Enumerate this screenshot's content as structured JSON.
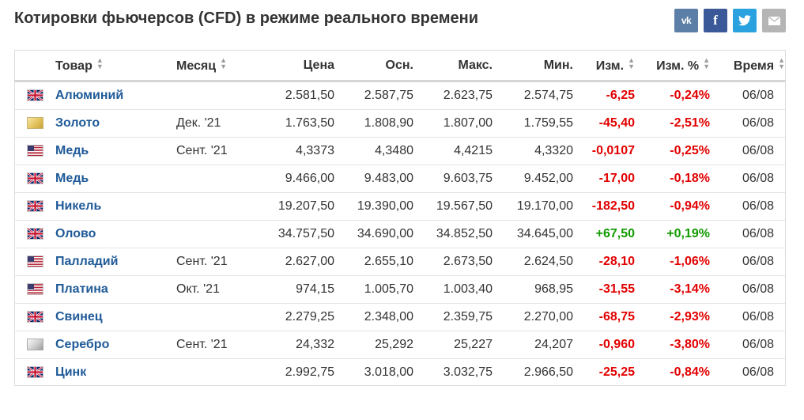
{
  "page": {
    "title": "Котировки фьючерсов (CFD) в режиме реального времени"
  },
  "social": {
    "vk": "vk",
    "facebook": "f",
    "twitter": "🐦",
    "email": "✉"
  },
  "colors": {
    "link": "#1f5a98",
    "negative": "#e20000",
    "positive": "#129a00"
  },
  "table": {
    "headers": {
      "product": "Товар",
      "month": "Месяц",
      "price": "Цена",
      "open": "Осн.",
      "high": "Макс.",
      "low": "Мин.",
      "change": "Изм.",
      "change_pct": "Изм. %",
      "time": "Время"
    },
    "rows": [
      {
        "flag": "uk-flag-icon",
        "name": "Алюминий",
        "month": "",
        "price": "2.581,50",
        "open": "2.587,75",
        "high": "2.623,75",
        "low": "2.574,75",
        "change": "-6,25",
        "change_pct": "-0,24%",
        "time": "06/08",
        "direction": "neg"
      },
      {
        "flag": "gold-icon",
        "name": "Золото",
        "month": "Дек. '21",
        "price": "1.763,50",
        "open": "1.808,90",
        "high": "1.807,00",
        "low": "1.759,55",
        "change": "-45,40",
        "change_pct": "-2,51%",
        "time": "06/08",
        "direction": "neg"
      },
      {
        "flag": "us-flag-icon",
        "name": "Медь",
        "month": "Сент. '21",
        "price": "4,3373",
        "open": "4,3480",
        "high": "4,4215",
        "low": "4,3320",
        "change": "-0,0107",
        "change_pct": "-0,25%",
        "time": "06/08",
        "direction": "neg"
      },
      {
        "flag": "uk-flag-icon",
        "name": "Медь",
        "month": "",
        "price": "9.466,00",
        "open": "9.483,00",
        "high": "9.603,75",
        "low": "9.452,00",
        "change": "-17,00",
        "change_pct": "-0,18%",
        "time": "06/08",
        "direction": "neg"
      },
      {
        "flag": "uk-flag-icon",
        "name": "Никель",
        "month": "",
        "price": "19.207,50",
        "open": "19.390,00",
        "high": "19.567,50",
        "low": "19.170,00",
        "change": "-182,50",
        "change_pct": "-0,94%",
        "time": "06/08",
        "direction": "neg"
      },
      {
        "flag": "uk-flag-icon",
        "name": "Олово",
        "month": "",
        "price": "34.757,50",
        "open": "34.690,00",
        "high": "34.852,50",
        "low": "34.645,00",
        "change": "+67,50",
        "change_pct": "+0,19%",
        "time": "06/08",
        "direction": "pos"
      },
      {
        "flag": "us-flag-icon",
        "name": "Палладий",
        "month": "Сент. '21",
        "price": "2.627,00",
        "open": "2.655,10",
        "high": "2.673,50",
        "low": "2.624,50",
        "change": "-28,10",
        "change_pct": "-1,06%",
        "time": "06/08",
        "direction": "neg"
      },
      {
        "flag": "us-flag-icon",
        "name": "Платина",
        "month": "Окт. '21",
        "price": "974,15",
        "open": "1.005,70",
        "high": "1.003,40",
        "low": "968,95",
        "change": "-31,55",
        "change_pct": "-3,14%",
        "time": "06/08",
        "direction": "neg"
      },
      {
        "flag": "uk-flag-icon",
        "name": "Свинец",
        "month": "",
        "price": "2.279,25",
        "open": "2.348,00",
        "high": "2.359,75",
        "low": "2.270,00",
        "change": "-68,75",
        "change_pct": "-2,93%",
        "time": "06/08",
        "direction": "neg"
      },
      {
        "flag": "silver-icon",
        "name": "Серебро",
        "month": "Сент. '21",
        "price": "24,332",
        "open": "25,292",
        "high": "25,227",
        "low": "24,207",
        "change": "-0,960",
        "change_pct": "-3,80%",
        "time": "06/08",
        "direction": "neg"
      },
      {
        "flag": "uk-flag-icon",
        "name": "Цинк",
        "month": "",
        "price": "2.992,75",
        "open": "3.018,00",
        "high": "3.032,75",
        "low": "2.966,50",
        "change": "-25,25",
        "change_pct": "-0,84%",
        "time": "06/08",
        "direction": "neg"
      }
    ]
  }
}
